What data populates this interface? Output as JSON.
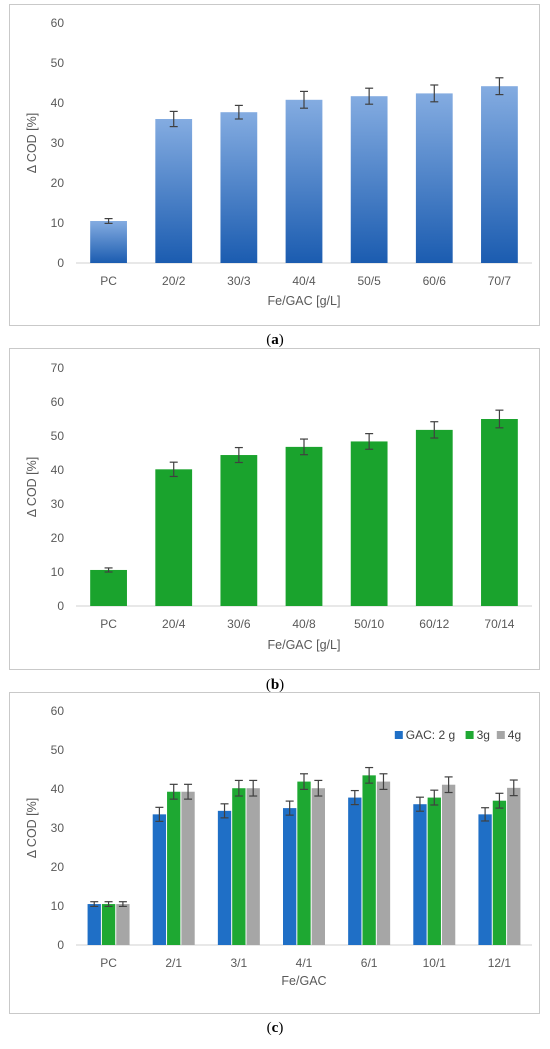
{
  "chart_data": [
    {
      "type": "bar",
      "caption": "a",
      "categories": [
        "PC",
        "20/2",
        "30/3",
        "40/4",
        "50/5",
        "60/6",
        "70/7"
      ],
      "series": [
        {
          "values": [
            10.5,
            36.0,
            37.7,
            40.8,
            41.7,
            42.4,
            44.2
          ],
          "errors": [
            0.6,
            1.9,
            1.7,
            2.1,
            2.0,
            2.1,
            2.1
          ],
          "color": "#1f68c8"
        }
      ],
      "xlabel": "Fe/GAC [g/L]",
      "ylabel": "Δ COD [%]",
      "ylim": [
        0,
        60
      ],
      "yticks": [
        0,
        10,
        20,
        30,
        40,
        50,
        60
      ],
      "grid": false,
      "legend": null
    },
    {
      "type": "bar",
      "caption": "b",
      "categories": [
        "PC",
        "20/4",
        "30/6",
        "40/8",
        "50/10",
        "60/12",
        "70/14"
      ],
      "series": [
        {
          "values": [
            10.6,
            40.2,
            44.4,
            46.8,
            48.4,
            51.8,
            55.0
          ],
          "errors": [
            0.6,
            2.1,
            2.2,
            2.3,
            2.3,
            2.4,
            2.6
          ],
          "color": "#1aa32d"
        }
      ],
      "xlabel": "Fe/GAC [g/L]",
      "ylabel": "Δ COD [%]",
      "ylim": [
        0,
        70
      ],
      "yticks": [
        0,
        10,
        20,
        30,
        40,
        50,
        60,
        70
      ],
      "grid": false,
      "legend": null
    },
    {
      "type": "bar",
      "caption": "c",
      "categories": [
        "PC",
        "2/1",
        "3/1",
        "4/1",
        "6/1",
        "10/1",
        "12/1"
      ],
      "series": [
        {
          "name": "GAC: 2 g",
          "values": [
            10.5,
            33.5,
            34.4,
            35.1,
            37.8,
            36.1,
            33.5
          ],
          "errors": [
            0.6,
            1.8,
            1.8,
            1.8,
            1.8,
            1.8,
            1.7
          ],
          "color": "#1f6fc6"
        },
        {
          "name": "3g",
          "values": [
            10.5,
            39.3,
            40.2,
            41.9,
            43.5,
            37.8,
            37.0
          ],
          "errors": [
            0.6,
            1.9,
            2.0,
            2.0,
            2.0,
            1.9,
            1.9
          ],
          "color": "#1ea832"
        },
        {
          "name": "4g",
          "values": [
            10.5,
            39.3,
            40.2,
            40.2,
            41.9,
            41.1,
            40.3
          ],
          "errors": [
            0.6,
            1.9,
            2.0,
            2.0,
            2.0,
            2.0,
            2.0
          ],
          "color": "#a6a6a6"
        }
      ],
      "xlabel": "Fe/GAC",
      "ylabel": "Δ COD [%]",
      "ylim": [
        0,
        60
      ],
      "yticks": [
        0,
        10,
        20,
        30,
        40,
        50,
        60
      ],
      "grid": false,
      "legend": "top-right"
    }
  ]
}
